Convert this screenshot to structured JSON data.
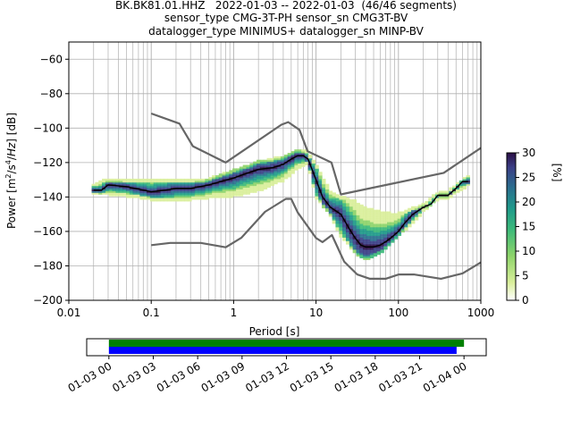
{
  "header": {
    "title_line1": "BK.BK81.01.HHZ   2022-01-03 -- 2022-01-03  (46/46 segments)",
    "title_line2": "sensor_type CMG-3T-PH sensor_sn CMG3T-BV",
    "title_line3": "datalogger_type MINIMUS+ datalogger_sn MINP-BV"
  },
  "colors": {
    "model_curves": "#666666",
    "mode_line": "#000000",
    "grid": "#b0b0b0",
    "coverage_green": "#008000",
    "coverage_blue": "#0000ff",
    "colormap": [
      "#ffffff",
      "#d9ee9a",
      "#8ed46a",
      "#3cb97a",
      "#1f9a8a",
      "#2a6f8e",
      "#3b3f86",
      "#2b0f45"
    ]
  },
  "chart_data": [
    {
      "type": "heatmap",
      "name": "PPSD",
      "xlabel": "Period [s]",
      "ylabel": "Power [m²/s⁴/Hz] [dB]",
      "xscale": "log",
      "xlim": [
        0.01,
        1000
      ],
      "ylim": [
        -200,
        -50
      ],
      "xticks": [
        0.01,
        0.1,
        1,
        10,
        100,
        1000
      ],
      "xtick_labels": [
        "0.01",
        "0.1",
        "1",
        "10",
        "100",
        "1000"
      ],
      "yticks": [
        -200,
        -180,
        -160,
        -140,
        -120,
        -100,
        -80,
        -60
      ],
      "ytick_labels": [
        "−200",
        "−180",
        "−160",
        "−140",
        "−120",
        "−100",
        "−80",
        "−60"
      ],
      "grid": true,
      "colorbar": {
        "label": "[%]",
        "range": [
          0,
          30
        ],
        "ticks": [
          0,
          5,
          10,
          15,
          20,
          25,
          30
        ],
        "tick_labels": [
          "0",
          "5",
          "10",
          "15",
          "20",
          "25",
          "30"
        ]
      },
      "mode_curve": {
        "period": [
          0.02,
          0.025,
          0.03,
          0.05,
          0.08,
          0.1,
          0.15,
          0.2,
          0.3,
          0.5,
          0.7,
          1,
          1.5,
          2,
          3,
          4,
          5,
          6,
          7,
          8,
          10,
          12,
          15,
          20,
          25,
          30,
          35,
          40,
          50,
          60,
          70,
          80,
          100,
          120,
          150,
          200,
          250,
          300,
          400,
          500,
          600,
          700
        ],
        "power": [
          -136,
          -136,
          -133,
          -134,
          -136,
          -137,
          -136,
          -135,
          -135,
          -133,
          -131,
          -129,
          -126,
          -124,
          -123,
          -121,
          -118,
          -116,
          -116,
          -118,
          -130,
          -140,
          -146,
          -150,
          -158,
          -164,
          -168,
          -169,
          -169,
          -168,
          -166,
          -164,
          -160,
          -155,
          -150,
          -146,
          -144,
          -139,
          -139,
          -135,
          -131,
          -131
        ]
      },
      "density_spread": {
        "period": [
          0.02,
          0.03,
          0.05,
          0.1,
          0.2,
          0.5,
          1,
          2,
          4,
          6,
          8,
          10,
          15,
          20,
          30,
          40,
          60,
          80,
          100,
          150,
          200,
          300,
          400,
          700
        ],
        "upper": [
          -133,
          -130,
          -131,
          -130,
          -131,
          -130,
          -125,
          -120,
          -117,
          -113,
          -114,
          -122,
          -137,
          -140,
          -143,
          -147,
          -149,
          -150,
          -150,
          -147,
          -145,
          -138,
          -137,
          -128
        ],
        "lower": [
          -138,
          -138,
          -139,
          -141,
          -142,
          -140,
          -139,
          -136,
          -130,
          -123,
          -120,
          -140,
          -150,
          -162,
          -172,
          -176,
          -172,
          -167,
          -162,
          -155,
          -148,
          -141,
          -140,
          -133
        ]
      },
      "nhnm": {
        "period": [
          0.1,
          0.22,
          0.32,
          0.8,
          3.8,
          4.6,
          6.3,
          7.9,
          15.4,
          20,
          354.8,
          1000
        ],
        "power": [
          -91.5,
          -97.4,
          -110.5,
          -120,
          -98,
          -96.5,
          -101,
          -113.5,
          -120,
          -138.5,
          -126,
          -111.5
        ]
      },
      "nlnm": {
        "period": [
          0.1,
          0.17,
          0.4,
          0.8,
          1.24,
          2.4,
          4.3,
          5,
          6,
          10,
          12,
          15.6,
          21.9,
          31.6,
          45,
          70,
          101,
          154,
          328,
          600,
          1000
        ],
        "power": [
          -168,
          -166.7,
          -166.7,
          -169.2,
          -163.7,
          -148.6,
          -141.1,
          -141.1,
          -149,
          -163.8,
          -166.2,
          -162.1,
          -177.5,
          -185,
          -187.5,
          -187.5,
          -185,
          -185,
          -187.5,
          -184.4,
          -178
        ]
      }
    },
    {
      "type": "bar",
      "name": "data coverage",
      "x_tick_labels": [
        "01-03 00",
        "01-03 03",
        "01-03 06",
        "01-03 09",
        "01-03 12",
        "01-03 15",
        "01-03 18",
        "01-03 21",
        "01-04 00"
      ],
      "xlim_hours": [
        -1.5,
        25.5
      ],
      "series": [
        {
          "color": "green",
          "start_hour": 0,
          "end_hour": 24.0
        },
        {
          "color": "blue",
          "start_hour": 0,
          "end_hour": 23.5
        }
      ]
    }
  ]
}
